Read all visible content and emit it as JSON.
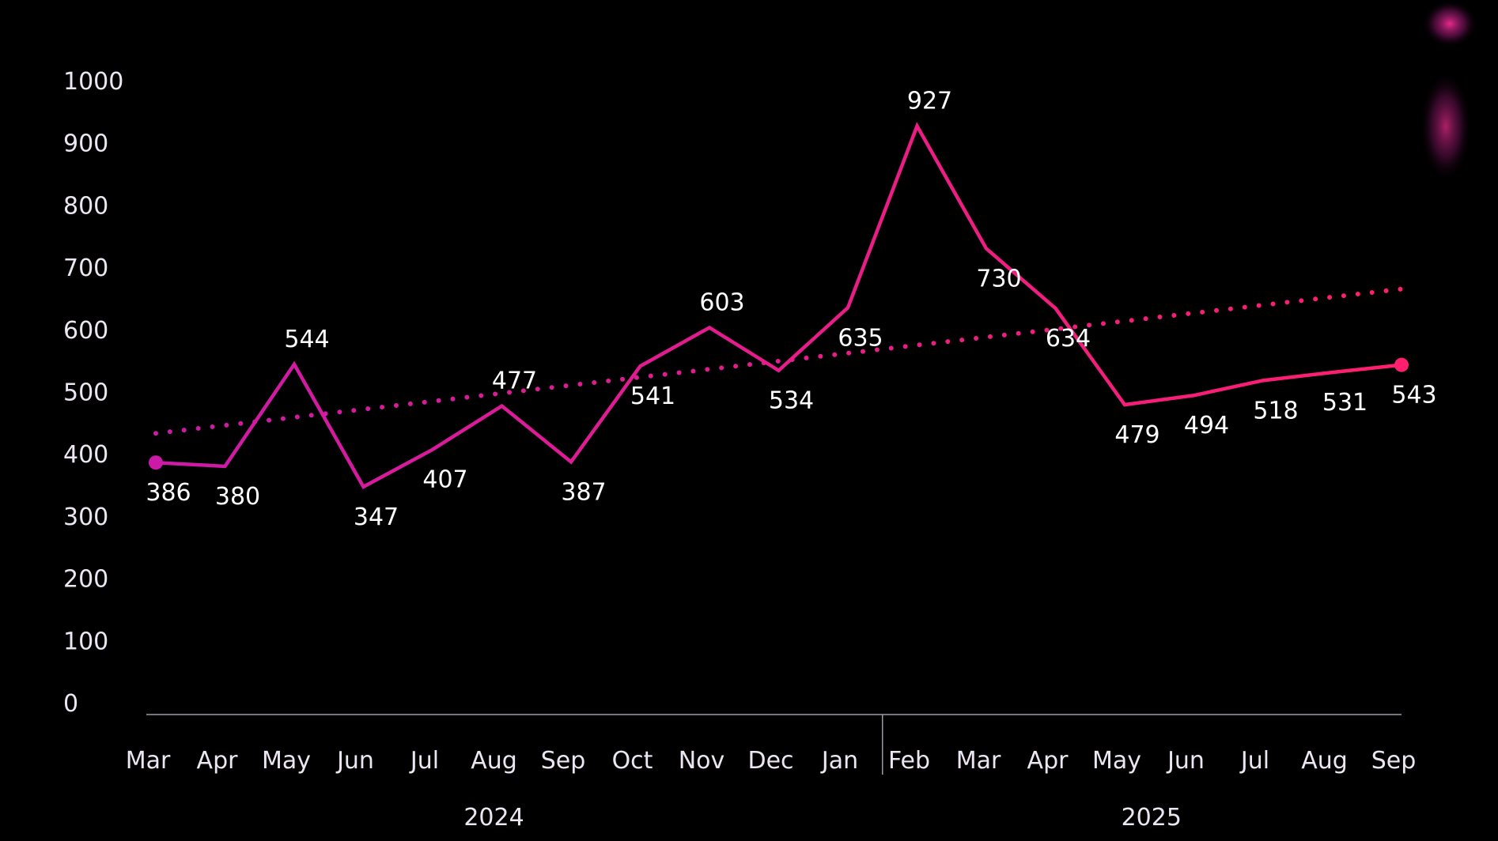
{
  "chart_data": {
    "type": "line",
    "title": "",
    "xlabel": "",
    "ylabel": "",
    "ylim": [
      0,
      1000
    ],
    "yticks": [
      0,
      100,
      200,
      300,
      400,
      500,
      600,
      700,
      800,
      900,
      1000
    ],
    "grid": false,
    "legend": "none",
    "categories": [
      "Mar",
      "Apr",
      "May",
      "Jun",
      "Jul",
      "Aug",
      "Sep",
      "Oct",
      "Nov",
      "Dec",
      "Jan",
      "Feb",
      "Mar",
      "Apr",
      "May",
      "Jun",
      "Jul",
      "Aug",
      "Sep"
    ],
    "year_groups": [
      {
        "label": "2024",
        "start": 0,
        "end": 10
      },
      {
        "label": "2025",
        "start": 11,
        "end": 18
      }
    ],
    "series": [
      {
        "values": [
          386,
          380,
          544,
          347,
          407,
          477,
          387,
          541,
          603,
          534,
          635,
          927,
          730,
          634,
          479,
          494,
          518,
          531,
          543
        ],
        "labels": [
          "386",
          "380",
          "544",
          "347",
          "407",
          "477",
          "387",
          "541",
          "603",
          "534",
          "635",
          "927",
          "730",
          "634",
          "479",
          "494",
          "518",
          "531",
          "543"
        ],
        "color_start": "#cc1aa8",
        "color_end": "#ff1f6e"
      }
    ],
    "trendline": {
      "style": "dotted",
      "start_value": 433,
      "end_value": 665,
      "color_start": "#cc1aa8",
      "color_end": "#ff1f6e"
    },
    "axis_color": "#9a9aa6",
    "tick_color": "#ece6f2",
    "background": "#000000"
  }
}
